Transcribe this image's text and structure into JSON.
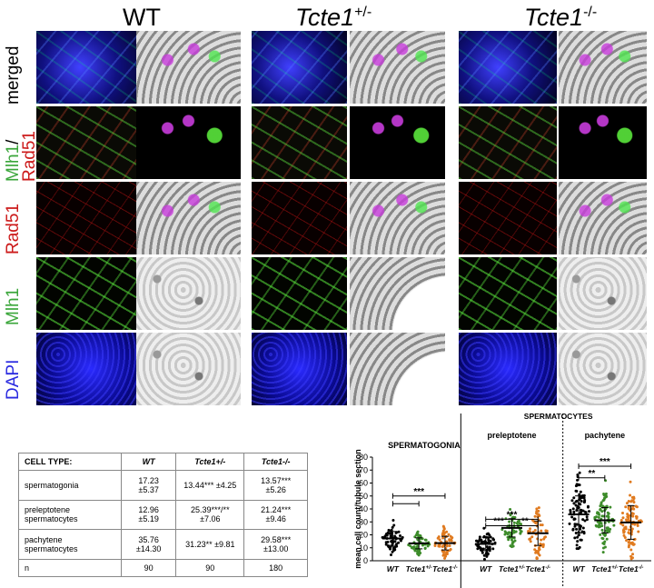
{
  "headers": {
    "wt": "WT",
    "het_base": "Tcte1",
    "het_sup": "+/-",
    "ko_base": "Tcte1",
    "ko_sup": "-/-"
  },
  "rows": [
    {
      "name": "merged",
      "parts": [
        {
          "text": "merged",
          "color": "#000000"
        }
      ]
    },
    {
      "name": "mlh1-rad51",
      "parts": [
        {
          "text": "Mlh1",
          "color": "#3aa63a"
        },
        {
          "text": "/",
          "color": "#000000"
        },
        {
          "text": "Rad51",
          "color": "#cc1a1a"
        }
      ]
    },
    {
      "name": "rad51",
      "parts": [
        {
          "text": "Rad51",
          "color": "#cc1a1a"
        }
      ]
    },
    {
      "name": "mlh1",
      "parts": [
        {
          "text": "Mlh1",
          "color": "#3aa63a"
        }
      ]
    },
    {
      "name": "dapi",
      "parts": [
        {
          "text": "DAPI",
          "color": "#2a2ae0"
        }
      ]
    }
  ],
  "table": {
    "header": [
      "CELL TYPE:",
      "WT",
      "Tcte1+/-",
      "Tcte1-/-"
    ],
    "rows": [
      [
        "spermatogonia",
        "17.23 ±5.37",
        "13.44*** ±4.25",
        "13.57*** ±5.26"
      ],
      [
        "preleptotene spermatocytes",
        "12.96 ±5.19",
        "25.39***/** ±7.06",
        "21.24*** ±9.46"
      ],
      [
        "pachytene spermatocytes",
        "35.76 ±14.30",
        "31.23** ±9.81",
        "29.58*** ±13.00"
      ],
      [
        "n",
        "90",
        "90",
        "180"
      ]
    ]
  },
  "chart_data": {
    "type": "scatter",
    "ylabel": "mean cell count/tubule section",
    "ylim": [
      0,
      80
    ],
    "yticks": [
      0,
      10,
      20,
      30,
      40,
      50,
      60,
      70,
      80
    ],
    "top_label": "SPERMATOCYTES",
    "groups": [
      {
        "label": "SPERMATOGONIA",
        "categories": [
          "WT",
          "Tcte1+/-",
          "Tcte1-/-"
        ],
        "means": [
          17.23,
          13.44,
          13.57
        ],
        "sd": [
          5.37,
          4.25,
          5.26
        ],
        "colors": [
          "#000000",
          "#3d8c2a",
          "#e07a1f"
        ]
      },
      {
        "label": "preleptotene",
        "categories": [
          "WT",
          "Tcte1+/-",
          "Tcte1-/-"
        ],
        "means": [
          12.96,
          25.39,
          21.24
        ],
        "sd": [
          5.19,
          7.06,
          9.46
        ],
        "colors": [
          "#000000",
          "#3d8c2a",
          "#e07a1f"
        ]
      },
      {
        "label": "pachytene",
        "categories": [
          "WT",
          "Tcte1+/-",
          "Tcte1-/-"
        ],
        "means": [
          35.76,
          31.23,
          29.58
        ],
        "sd": [
          14.3,
          9.81,
          13.0
        ],
        "colors": [
          "#000000",
          "#3d8c2a",
          "#e07a1f"
        ]
      }
    ],
    "significance": [
      "***",
      "***",
      "***",
      "**",
      "**",
      "***"
    ]
  }
}
